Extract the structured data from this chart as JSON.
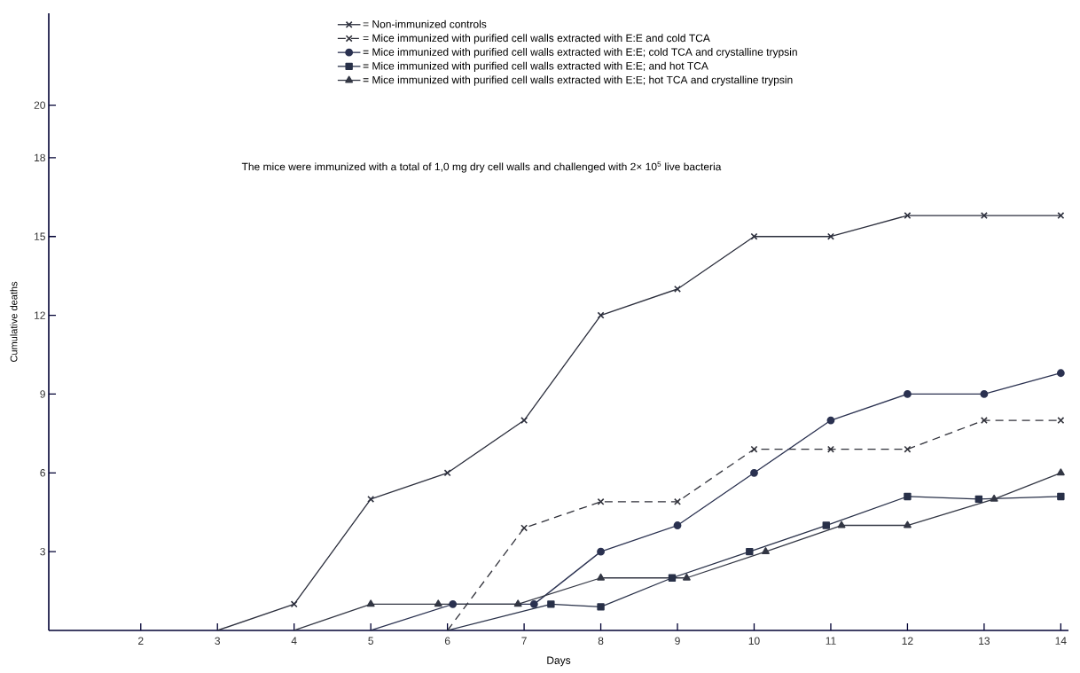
{
  "chart_data": {
    "type": "line",
    "xlabel": "Days",
    "ylabel": "Cumulative deaths",
    "xlim": [
      0.8,
      14.1
    ],
    "ylim": [
      0,
      23.5
    ],
    "xticks": [
      2,
      3,
      4,
      5,
      6,
      7,
      8,
      9,
      10,
      11,
      12,
      13,
      14
    ],
    "yticks": [
      3,
      6,
      9,
      12,
      15,
      18,
      20
    ],
    "grid": false,
    "legend": "top",
    "annotations": [
      "The mice were immunized with a total of 1,0 mg dry cell walls and challenged with 2× 10$^{5}$ live bacteria"
    ],
    "series": [
      {
        "name": "= Non-immunized controls",
        "color": "#2b2e3c",
        "marker": "cross",
        "line_style": "solid",
        "x": [
          3,
          4,
          5,
          6,
          7,
          8,
          9,
          10,
          11,
          12,
          13,
          14
        ],
        "values": [
          0,
          1,
          5,
          6,
          8,
          12,
          13,
          15,
          15,
          15.8,
          15.8,
          15.8
        ]
      },
      {
        "name": "= Mice immunized with purified cell walls extracted with E:E and cold TCA",
        "color": "#30313a",
        "marker": "cross",
        "line_style": "dashed",
        "x": [
          6,
          7,
          8,
          9,
          10,
          11,
          12,
          13,
          14
        ],
        "values": [
          0,
          3.9,
          4.9,
          4.9,
          6.9,
          6.9,
          6.9,
          8,
          8
        ]
      },
      {
        "name": "= Mice immunized with purified cell walls extracted with E:E; cold TCA and crystalline  trypsin",
        "color": "#2a3150",
        "marker": "circle",
        "line_style": "solid",
        "x": [
          5,
          6.07,
          7.13,
          8,
          9,
          10,
          11,
          12,
          13,
          14
        ],
        "values": [
          0,
          1,
          1,
          3,
          4,
          6,
          8,
          9,
          9,
          9.8
        ]
      },
      {
        "name": "= Mice immunized with purified cell walls extracted with E:E; and hot TCA",
        "color": "#283048",
        "marker": "square",
        "line_style": "solid",
        "x": [
          6,
          7.35,
          8,
          8.93,
          9.94,
          10.94,
          12,
          12.93,
          14
        ],
        "values": [
          0,
          1,
          0.9,
          2,
          3,
          4,
          5.1,
          5,
          5.1
        ]
      },
      {
        "name": "= Mice immunized with purified cell walls extracted with E:E; hot TCA and crystalline trypsin",
        "color": "#333744",
        "marker": "triangle",
        "line_style": "solid",
        "x": [
          4,
          5,
          5.88,
          6.92,
          8,
          9.12,
          10.15,
          11.14,
          12,
          13.13,
          14
        ],
        "values": [
          0,
          1,
          1,
          1,
          2,
          2,
          3,
          4,
          4,
          5,
          6
        ]
      }
    ]
  }
}
